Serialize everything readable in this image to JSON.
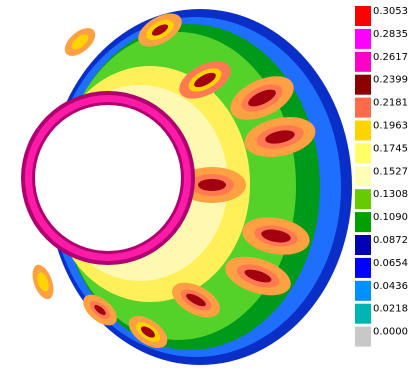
{
  "legend": {
    "levels": [
      {
        "value": "0.3053",
        "color": "#ff0000"
      },
      {
        "value": "0.2835",
        "color": "#ff00ff"
      },
      {
        "value": "0.2617",
        "color": "#ff00c8"
      },
      {
        "value": "0.2399",
        "color": "#8b0000"
      },
      {
        "value": "0.2181",
        "color": "#ff6a4a"
      },
      {
        "value": "0.1963",
        "color": "#ffd400"
      },
      {
        "value": "0.1745",
        "color": "#ffff66"
      },
      {
        "value": "0.1527",
        "color": "#ffffb4"
      },
      {
        "value": "0.1308",
        "color": "#66cc00"
      },
      {
        "value": "0.1090",
        "color": "#00a000"
      },
      {
        "value": "0.0872",
        "color": "#0000b4"
      },
      {
        "value": "0.0654",
        "color": "#0000ff"
      },
      {
        "value": "0.0436",
        "color": "#0090ff"
      },
      {
        "value": "0.0218",
        "color": "#00b4b4"
      },
      {
        "value": "0.0000",
        "color": "#c8c8c8"
      }
    ]
  },
  "plot": {
    "colors": {
      "outer_rim": "#0a2ec8",
      "outer_light": "#1f6fff",
      "green_dark": "#009a1a",
      "green_light": "#55d22a",
      "yellow_pale": "#fff8b0",
      "yellow": "#fff05a",
      "orange": "#ffa043",
      "salmon": "#ff7a52",
      "dark_red": "#a30010",
      "magenta": "#ff1aa8",
      "magenta_edge": "#b00070",
      "hole": "#ffffff"
    }
  }
}
